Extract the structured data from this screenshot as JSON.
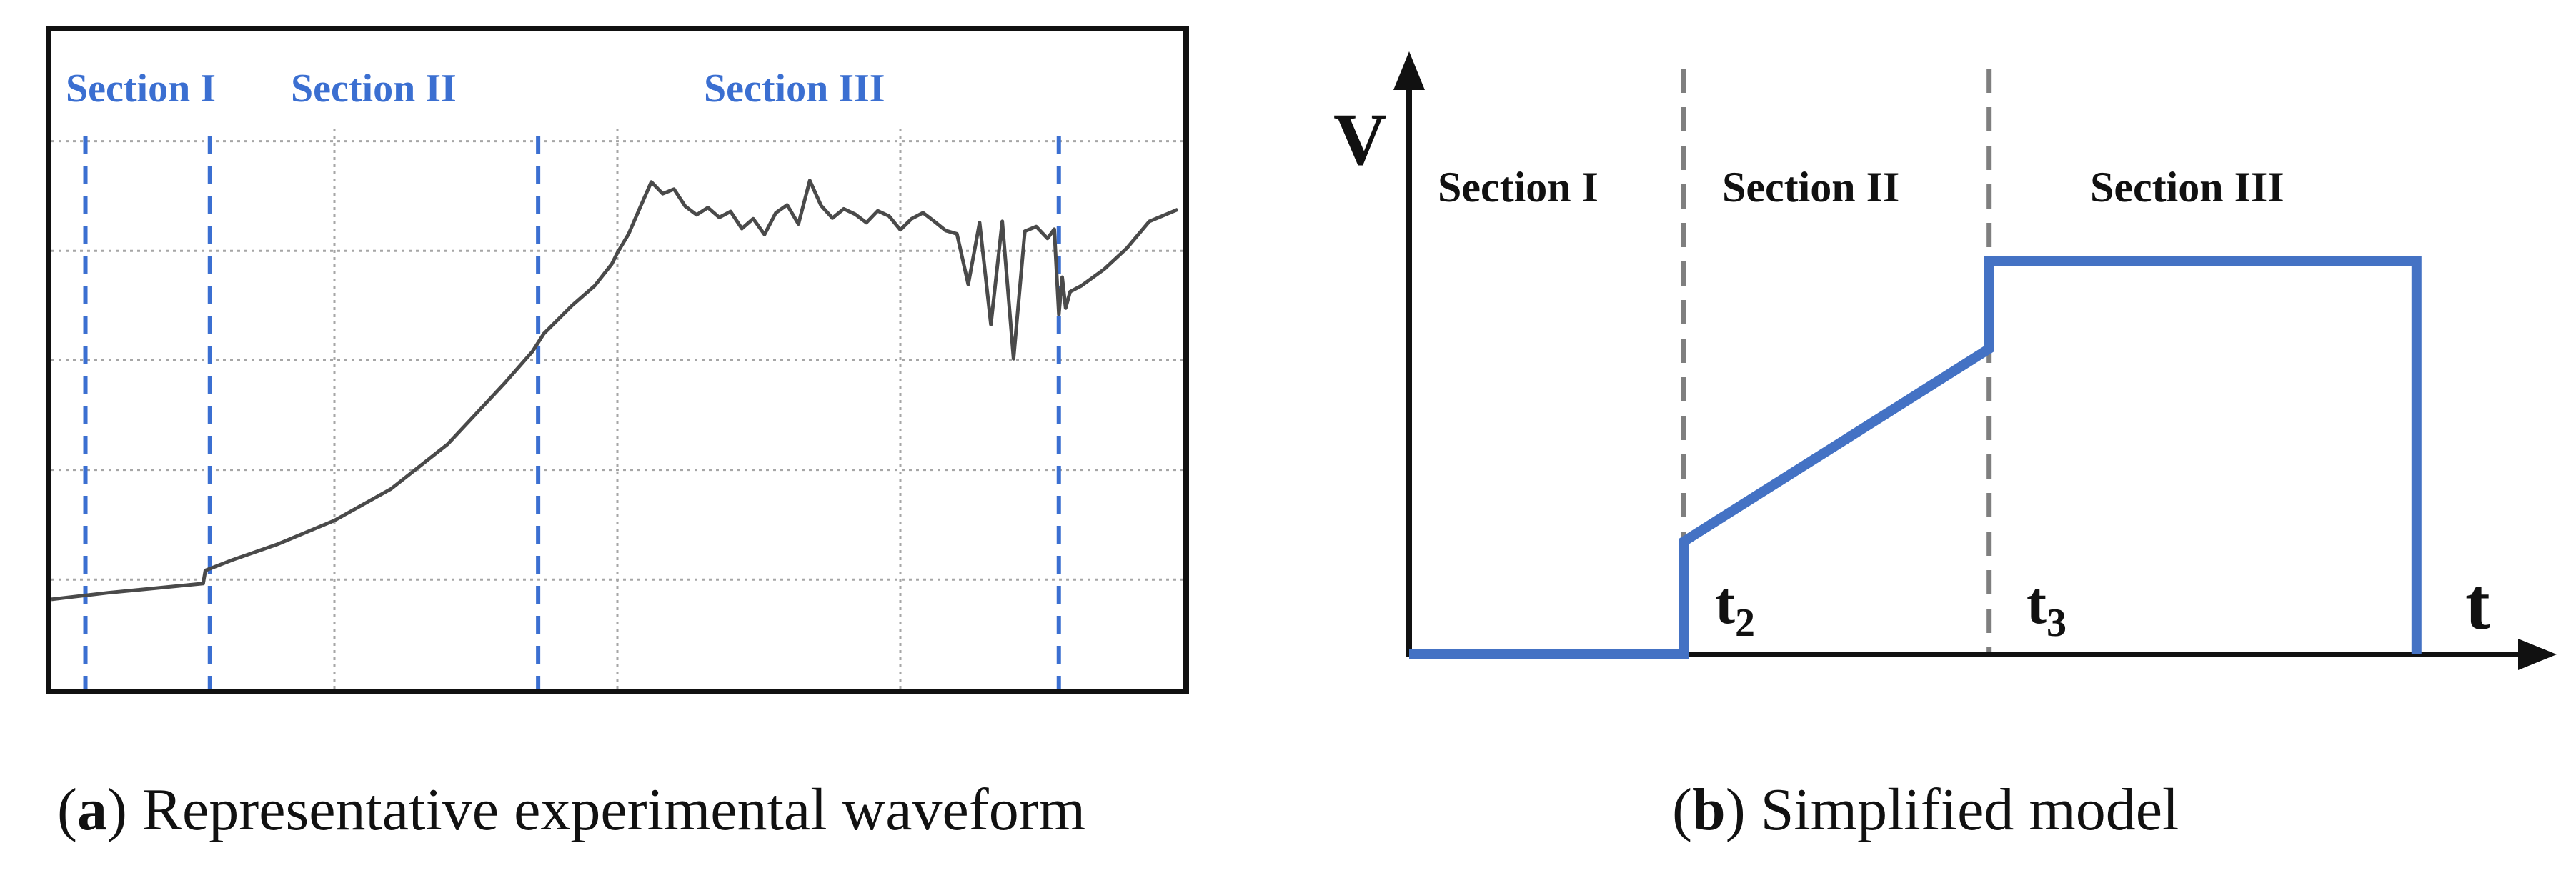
{
  "colors": {
    "accent_blue": "#4472c4",
    "section_blue": "#3b6fd1",
    "waveform": "#4a4a4a",
    "grid": "#a6a6a6",
    "frame": "#111111",
    "divider_gray": "#7f7f7f",
    "text": "#111111"
  },
  "captions": [
    {
      "letter": "a",
      "open": "(",
      "close": ")",
      "text": " Representative experimental waveform"
    },
    {
      "letter": "b",
      "open": "(",
      "close": ")",
      "text": " Simplified model"
    }
  ],
  "chart_data": [
    {
      "type": "line",
      "panel": "a",
      "sections": [
        "Section I",
        "Section II",
        "Section III"
      ],
      "grid": true,
      "x_range": [
        0,
        100
      ],
      "y_range": [
        0,
        100
      ],
      "section_markers_x": [
        3,
        14,
        43,
        89
      ],
      "grid_x": [
        25,
        50,
        75
      ],
      "grid_y": [
        16.6,
        33.3,
        50,
        66.6,
        83.3
      ],
      "series": [
        {
          "x": [
            0,
            2,
            5,
            8,
            11,
            13.4,
            13.6,
            16,
            20,
            25,
            30,
            35,
            40,
            42.5,
            43.5,
            46,
            48,
            49.5,
            50,
            51,
            52,
            53,
            54,
            55,
            56,
            57,
            58,
            59,
            60,
            61,
            62,
            63,
            64,
            65,
            66,
            67,
            68,
            69,
            70,
            71,
            72,
            73,
            74,
            75,
            76,
            77,
            78,
            79,
            80,
            81,
            82,
            83,
            84,
            85,
            86,
            87,
            88,
            88.6,
            89,
            89.3,
            89.6,
            90,
            91,
            93,
            95,
            97,
            99.5
          ],
          "y": [
            13.6,
            14.0,
            14.6,
            15.1,
            15.6,
            16.0,
            18.0,
            19.6,
            22.0,
            25.6,
            30.4,
            37.2,
            46.4,
            51.3,
            54.0,
            58.3,
            61.3,
            64.6,
            66.3,
            69.2,
            73.2,
            77.1,
            75.3,
            76.0,
            73.4,
            72.1,
            73.2,
            71.7,
            72.6,
            70.0,
            71.5,
            69.1,
            72.4,
            73.6,
            70.7,
            77.3,
            73.5,
            71.6,
            73.0,
            72.2,
            70.9,
            72.7,
            71.9,
            69.8,
            71.5,
            72.4,
            71.1,
            69.7,
            69.2,
            61.5,
            70.9,
            55.4,
            71.1,
            50.2,
            69.6,
            70.3,
            68.5,
            69.9,
            56.9,
            62.6,
            57.9,
            60.4,
            61.3,
            63.8,
            67.0,
            71.1,
            72.9
          ],
          "note_ignore": ""
        }
      ]
    },
    {
      "type": "line",
      "panel": "b",
      "sections": [
        "Section I",
        "Section II",
        "Section III"
      ],
      "xlabel": "t",
      "ylabel": "V",
      "tick_labels": [
        {
          "base": "t",
          "sub": "2"
        },
        {
          "base": "t",
          "sub": "3"
        }
      ],
      "x_range": [
        0,
        100
      ],
      "y_range": [
        0,
        100
      ],
      "divider_x": [
        27,
        57
      ],
      "series": [
        {
          "x": [
            0,
            27,
            27,
            57,
            57,
            99,
            99
          ],
          "y": [
            0,
            0,
            27,
            73,
            94,
            94,
            0
          ]
        }
      ]
    }
  ]
}
